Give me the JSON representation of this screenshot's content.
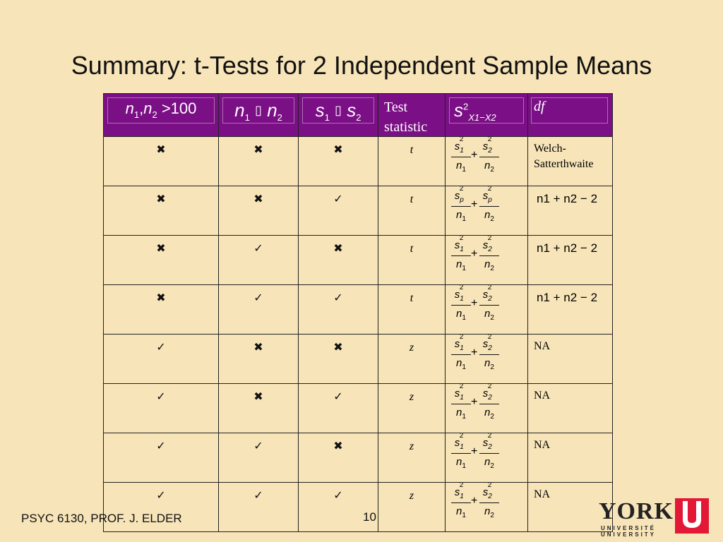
{
  "slide": {
    "title": "Summary:  t-Tests for 2 Independent Sample Means",
    "footer": "PSYC 6130, PROF. J. ELDER",
    "page_number": "10"
  },
  "logo": {
    "word": "YORK",
    "line1": "UNIVERSITÉ",
    "line2": "UNIVERSITY",
    "color": "#e31837"
  },
  "table": {
    "header_color": "#7b0f86",
    "headers": {
      "col1": {
        "n1": "n",
        "sub1": "1",
        "comma": ",",
        "n2": "n",
        "sub2": "2",
        "op": ">",
        "value": "100"
      },
      "col2": {
        "a": "n",
        "asub": "1",
        "op": "",
        "b": "n",
        "bsub": "2"
      },
      "col3": {
        "a": "s",
        "asub": "1",
        "op": "",
        "b": "s",
        "bsub": "2"
      },
      "col4": {
        "line1": "Test",
        "line2": "statistic"
      },
      "col5": {
        "var": "s",
        "sup": "2",
        "sub": "X1−X2"
      },
      "col6": {
        "label": "df"
      }
    },
    "symbols": {
      "yes": "✓",
      "no": "✖",
      "plus": "+",
      "minus": "−"
    },
    "rows": [
      {
        "c1": "✖",
        "c2": "✖",
        "c3": "✖",
        "stat": "t",
        "var1": "1",
        "var2": "2",
        "df": "Welch-\nSatterthwaite",
        "df_type": "text"
      },
      {
        "c1": "✖",
        "c2": "✖",
        "c3": "✓",
        "stat": "t",
        "var1": "p",
        "var2": "p",
        "df": "n1 + n2 − 2",
        "df_type": "math"
      },
      {
        "c1": "✖",
        "c2": "✓",
        "c3": "✖",
        "stat": "t",
        "var1": "1",
        "var2": "2",
        "df": "n1 + n2 − 2",
        "df_type": "math"
      },
      {
        "c1": "✖",
        "c2": "✓",
        "c3": "✓",
        "stat": "t",
        "var1": "1",
        "var2": "2",
        "df": "n1 + n2 − 2",
        "df_type": "math"
      },
      {
        "c1": "✓",
        "c2": "✖",
        "c3": "✖",
        "stat": "z",
        "var1": "1",
        "var2": "2",
        "df": "NA",
        "df_type": "text"
      },
      {
        "c1": "✓",
        "c2": "✖",
        "c3": "✓",
        "stat": "z",
        "var1": "1",
        "var2": "2",
        "df": "NA",
        "df_type": "text"
      },
      {
        "c1": "✓",
        "c2": "✓",
        "c3": "✖",
        "stat": "z",
        "var1": "1",
        "var2": "2",
        "df": "NA",
        "df_type": "text"
      },
      {
        "c1": "✓",
        "c2": "✓",
        "c3": "✓",
        "stat": "z",
        "var1": "1",
        "var2": "2",
        "df": "NA",
        "df_type": "text"
      }
    ]
  }
}
